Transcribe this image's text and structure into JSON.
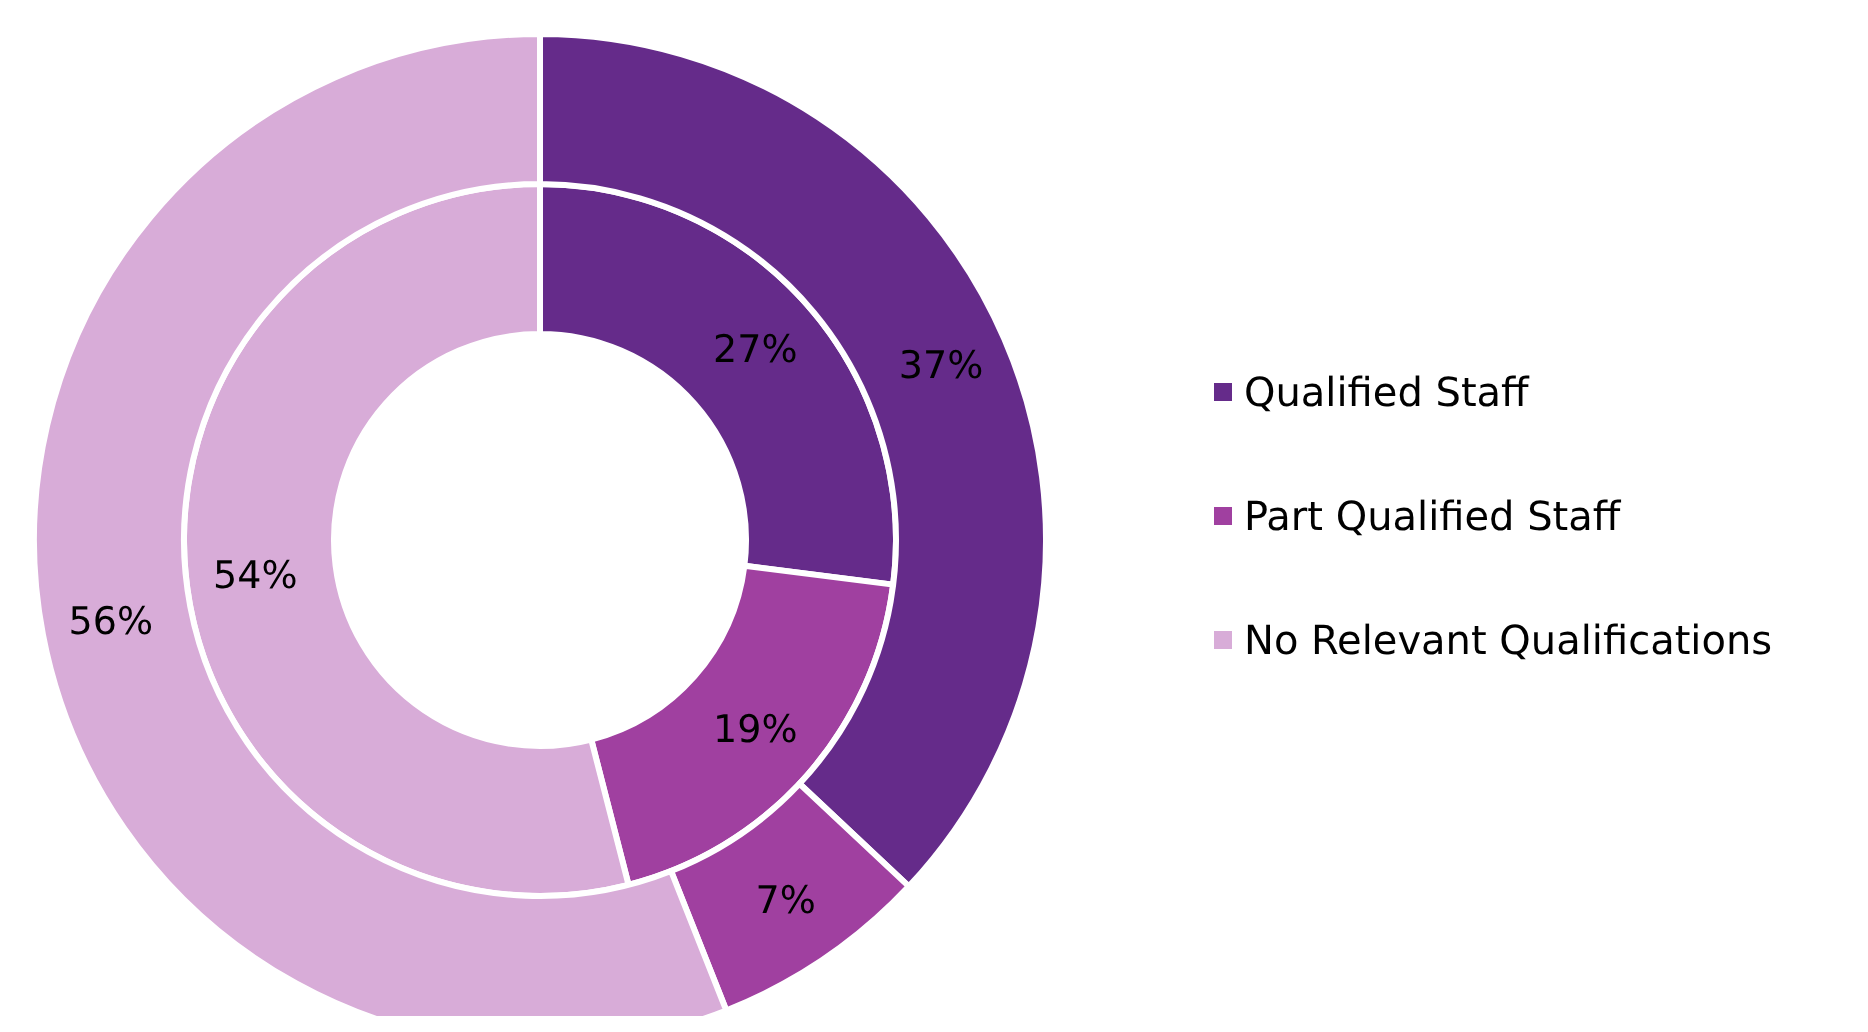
{
  "chart_data": {
    "type": "donut",
    "categories": [
      "Qualified Staff",
      "Part Qualified Staff",
      "No Relevant Qualifications"
    ],
    "colors": [
      "#652b8a",
      "#a040a0",
      "#d8acd8"
    ],
    "series": [
      {
        "values": [
          27,
          19,
          54
        ],
        "value_labels": [
          "27%",
          "19%",
          "54%"
        ]
      },
      {
        "values": [
          37,
          7,
          56
        ],
        "value_labels": [
          "37%",
          "7%",
          "56%"
        ]
      }
    ],
    "legend": "right"
  }
}
